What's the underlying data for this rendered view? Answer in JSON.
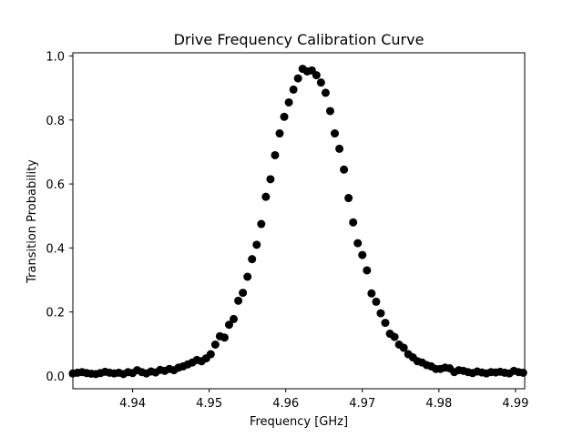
{
  "chart_data": {
    "type": "scatter",
    "title": "Drive Frequency Calibration Curve",
    "xlabel": "Frequency [GHz]",
    "ylabel": "Transition Probability",
    "xlim": [
      4.9322,
      4.9912
    ],
    "ylim": [
      -0.04,
      1.01
    ],
    "x_ticks": [
      4.94,
      4.95,
      4.96,
      4.97,
      4.98,
      4.99
    ],
    "y_ticks": [
      0.0,
      0.2,
      0.4,
      0.6,
      0.8,
      1.0
    ],
    "x_tick_labels": [
      "4.94",
      "4.95",
      "4.96",
      "4.97",
      "4.98",
      "4.99"
    ],
    "y_tick_labels": [
      "0.0",
      "0.2",
      "0.4",
      "0.6",
      "0.8",
      "1.0"
    ],
    "grid": false,
    "marker_color": "#000000",
    "series": [
      {
        "x": [
          4.9322,
          4.9328,
          4.9334,
          4.934,
          4.9346,
          4.9352,
          4.9358,
          4.9364,
          4.937,
          4.9376,
          4.9382,
          4.9388,
          4.9394,
          4.94,
          4.9406,
          4.9412,
          4.9418,
          4.9424,
          4.943,
          4.9436,
          4.9442,
          4.9448,
          4.9454,
          4.946,
          4.9466,
          4.9472,
          4.9478,
          4.9484,
          4.949,
          4.9496,
          4.9502,
          4.9508,
          4.9514,
          4.952,
          4.9526,
          4.9532,
          4.9538,
          4.9544,
          4.955,
          4.9556,
          4.9562,
          4.9568,
          4.9574,
          4.958,
          4.9586,
          4.9592,
          4.9598,
          4.9604,
          4.961,
          4.9616,
          4.9622,
          4.9628,
          4.9634,
          4.964,
          4.9646,
          4.9652,
          4.9658,
          4.9664,
          4.967,
          4.9676,
          4.9682,
          4.9688,
          4.9694,
          4.97,
          4.9706,
          4.9712,
          4.9718,
          4.9724,
          4.973,
          4.9736,
          4.9742,
          4.9748,
          4.9754,
          4.976,
          4.9766,
          4.9772,
          4.9778,
          4.9784,
          4.979,
          4.9796,
          4.9802,
          4.9808,
          4.9814,
          4.982,
          4.9826,
          4.9832,
          4.9838,
          4.9844,
          4.985,
          4.9856,
          4.9862,
          4.9868,
          4.9874,
          4.988,
          4.9886,
          4.9892,
          4.9898,
          4.9904,
          4.991
        ],
        "y": [
          0.008,
          0.01,
          0.012,
          0.009,
          0.007,
          0.006,
          0.009,
          0.013,
          0.01,
          0.008,
          0.01,
          0.006,
          0.012,
          0.009,
          0.018,
          0.012,
          0.008,
          0.014,
          0.011,
          0.019,
          0.016,
          0.022,
          0.018,
          0.026,
          0.03,
          0.036,
          0.042,
          0.05,
          0.046,
          0.055,
          0.068,
          0.098,
          0.124,
          0.12,
          0.16,
          0.178,
          0.235,
          0.26,
          0.31,
          0.365,
          0.41,
          0.475,
          0.56,
          0.615,
          0.69,
          0.758,
          0.81,
          0.855,
          0.895,
          0.93,
          0.96,
          0.952,
          0.955,
          0.94,
          0.917,
          0.885,
          0.828,
          0.758,
          0.71,
          0.645,
          0.556,
          0.48,
          0.415,
          0.378,
          0.33,
          0.258,
          0.232,
          0.196,
          0.166,
          0.132,
          0.122,
          0.098,
          0.088,
          0.068,
          0.058,
          0.046,
          0.042,
          0.034,
          0.03,
          0.022,
          0.022,
          0.026,
          0.024,
          0.012,
          0.018,
          0.016,
          0.012,
          0.009,
          0.014,
          0.011,
          0.008,
          0.012,
          0.011,
          0.013,
          0.01,
          0.008,
          0.016,
          0.012,
          0.01
        ]
      }
    ]
  }
}
